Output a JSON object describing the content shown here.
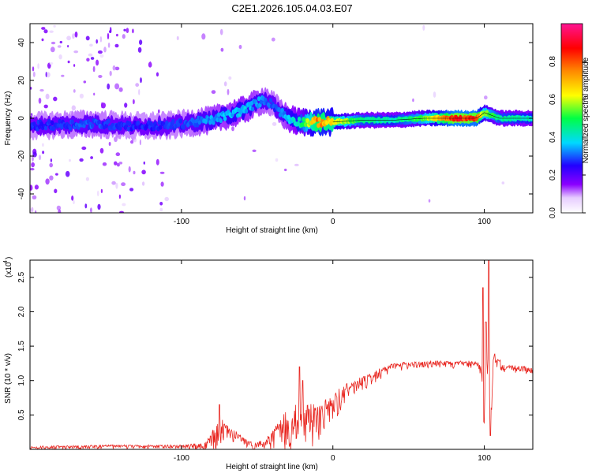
{
  "title": "C2E1.2026.105.04.03.E07",
  "chart_data": [
    {
      "type": "heatmap",
      "name": "spectrogram",
      "xlabel": "Height of straight line (km)",
      "ylabel": "Frequency (Hz)",
      "xlim": [
        -200,
        132
      ],
      "ylim": [
        -50,
        50
      ],
      "xticks": [
        -100,
        0,
        100
      ],
      "yticks": [
        -40,
        -20,
        0,
        20,
        40
      ],
      "colorbar": {
        "label": "Normalized spectral amplitude",
        "range": [
          0,
          1
        ],
        "ticks": [
          "0.0",
          "0.2",
          "0.4",
          "0.6",
          "0.8"
        ],
        "tick_values": [
          0.0,
          0.2,
          0.4,
          0.6,
          0.8
        ]
      },
      "ridge": {
        "x": [
          -200,
          -160,
          -130,
          -110,
          -100,
          -80,
          -60,
          -45,
          -38,
          -30,
          -22,
          -10,
          0,
          20,
          40,
          60,
          80,
          95,
          100,
          110,
          132
        ],
        "f": [
          -4,
          -3,
          -4,
          -4,
          -3,
          -1,
          4,
          10,
          6,
          0,
          -2,
          -2,
          -2,
          -1,
          -1,
          0,
          0,
          0,
          3,
          0,
          0
        ],
        "amp": [
          0.28,
          0.32,
          0.28,
          0.3,
          0.3,
          0.36,
          0.4,
          0.34,
          0.3,
          0.38,
          0.45,
          0.8,
          0.72,
          0.48,
          0.45,
          0.58,
          0.92,
          0.9,
          0.62,
          0.48,
          0.44
        ]
      }
    },
    {
      "type": "line",
      "name": "snr",
      "xlabel": "Height of straight line (km)",
      "ylabel": "SNR (10 * v/v)",
      "multiplier_label": "(x10",
      "multiplier_exp": "4",
      "multiplier_close": ")",
      "xlim": [
        -200,
        132
      ],
      "ylim": [
        0,
        2.75
      ],
      "xticks": [
        -100,
        0,
        100
      ],
      "yticks": [
        0.5,
        1.0,
        1.5,
        2.0,
        2.5
      ],
      "ytick_labels": [
        "0.5",
        "1.0",
        "1.5",
        "2.0",
        "2.5"
      ],
      "color": "#e8251f",
      "envelope_x": [
        -200,
        -160,
        -100,
        -85,
        -78,
        -74,
        -68,
        -62,
        -55,
        -45,
        -40,
        -33,
        -27,
        -22,
        -15,
        -8,
        0,
        10,
        20,
        30,
        40,
        60,
        80,
        95,
        98,
        100,
        101,
        103,
        104,
        106,
        112,
        132
      ],
      "envelope_y": [
        0.04,
        0.06,
        0.06,
        0.1,
        0.3,
        0.42,
        0.3,
        0.22,
        0.1,
        0.12,
        0.25,
        0.45,
        0.6,
        0.55,
        0.6,
        0.65,
        0.78,
        0.95,
        1.05,
        1.15,
        1.25,
        1.28,
        1.28,
        1.28,
        1.2,
        0.5,
        1.5,
        1.3,
        0.4,
        1.5,
        1.22,
        1.2
      ],
      "noise_y": [
        0.03,
        0.03,
        0.03,
        0.08,
        0.2,
        0.2,
        0.12,
        0.08,
        0.06,
        0.08,
        0.15,
        0.35,
        0.4,
        0.35,
        0.35,
        0.3,
        0.25,
        0.15,
        0.12,
        0.1,
        0.08,
        0.06,
        0.06,
        0.06,
        0.1,
        0.3,
        0.2,
        0.2,
        0.3,
        0.15,
        0.06,
        0.06
      ],
      "spikes": [
        {
          "x": -75,
          "y": 0.65
        },
        {
          "x": -22,
          "y": 1.2
        },
        {
          "x": -20,
          "y": 1.0
        },
        {
          "x": 99,
          "y": 2.35
        },
        {
          "x": 101,
          "y": 1.85
        },
        {
          "x": 103,
          "y": 2.75
        },
        {
          "x": 104,
          "y": 0.2
        }
      ]
    }
  ]
}
